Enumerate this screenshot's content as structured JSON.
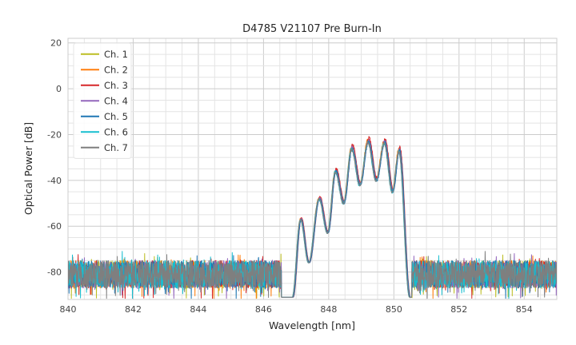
{
  "chart_data": {
    "type": "line",
    "title": "D4785 V21107 Pre Burn-In",
    "xlabel": "Wavelength [nm]",
    "ylabel": "Optical Power [dB]",
    "xlim": [
      840,
      855
    ],
    "ylim": [
      -92,
      22
    ],
    "xticks": [
      840,
      842,
      844,
      846,
      848,
      850,
      852,
      854
    ],
    "yticks": [
      20,
      0,
      -20,
      -40,
      -60,
      -80
    ],
    "grid": true,
    "minor_grid": true,
    "legend_position": "upper left",
    "series": [
      {
        "name": "Ch. 1",
        "color": "#bcbd22",
        "offset_db": 0.0
      },
      {
        "name": "Ch. 2",
        "color": "#ff7f0e",
        "offset_db": 0.5
      },
      {
        "name": "Ch. 3",
        "color": "#d62728",
        "offset_db": 1.5
      },
      {
        "name": "Ch. 4",
        "color": "#9467bd",
        "offset_db": 0.5
      },
      {
        "name": "Ch. 5",
        "color": "#1f77b4",
        "offset_db": 0.0
      },
      {
        "name": "Ch. 6",
        "color": "#17becf",
        "offset_db": -0.5
      },
      {
        "name": "Ch. 7",
        "color": "#7f7f7f",
        "offset_db": -0.5
      }
    ],
    "noise_floor": {
      "mean_db": -81,
      "peak_to_peak_db": 12,
      "regions_nm": [
        [
          840.0,
          846.55
        ],
        [
          850.55,
          855.0
        ]
      ]
    },
    "signal": {
      "region_nm": [
        846.55,
        850.55
      ],
      "peak_wavelength_nm": 849.2,
      "peak_power_db": -22,
      "envelope_points": [
        [
          846.9,
          -91
        ],
        [
          847.15,
          -57
        ],
        [
          847.4,
          -76
        ],
        [
          847.72,
          -48
        ],
        [
          847.98,
          -63
        ],
        [
          848.22,
          -36
        ],
        [
          848.47,
          -50
        ],
        [
          848.72,
          -26
        ],
        [
          848.97,
          -42
        ],
        [
          849.22,
          -23
        ],
        [
          849.47,
          -40
        ],
        [
          849.72,
          -23.5
        ],
        [
          849.97,
          -45
        ],
        [
          850.17,
          -27
        ],
        [
          850.5,
          -91
        ]
      ]
    }
  }
}
